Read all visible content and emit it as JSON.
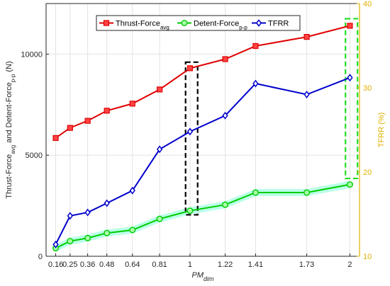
{
  "chart_data": {
    "type": "line",
    "x_tick_labels": [
      "0.16",
      "0.25",
      "0.36",
      "0.48",
      "0.64",
      "0.81",
      "1",
      "1.22",
      "1.41",
      "1.73",
      "2"
    ],
    "x_tick_positions": [
      0.16,
      0.25,
      0.36,
      0.48,
      0.64,
      0.81,
      1.0,
      1.22,
      1.41,
      1.73,
      2.0
    ],
    "xlim": [
      0.1,
      2.06
    ],
    "xlabel": {
      "main": "PM",
      "sub": "dim"
    },
    "ylabel_left": {
      "part1": "Thrust-Force",
      "sub1": "avg",
      "part2": " and Detent-Force",
      "sub2": "p-p",
      "part3": " (N)"
    },
    "ylabel_right": "TFRR (%)",
    "ylim_left": [
      0,
      12500
    ],
    "yticks_left": [
      0,
      5000,
      10000
    ],
    "ylim_right": [
      10,
      40
    ],
    "yticks_right": [
      10,
      20,
      30,
      40
    ],
    "grid": true,
    "legend_position": "top",
    "colors": {
      "thrust": "#e00000",
      "detent": "#00cc00",
      "tfrr": "#0000cc",
      "right_axis": "#e0b000",
      "black_box": "#000000",
      "green_box": "#22dd22",
      "band": "#66ffcc"
    },
    "series": [
      {
        "key": "thrust",
        "name": {
          "base": "Thrust-Force",
          "sub": "avg"
        },
        "axis": "left",
        "marker": "square",
        "x": [
          0.16,
          0.25,
          0.36,
          0.48,
          0.64,
          0.81,
          1.0,
          1.22,
          1.41,
          1.73,
          2.0
        ],
        "values": [
          5850,
          6350,
          6700,
          7200,
          7550,
          8250,
          9300,
          9750,
          10400,
          10850,
          11400
        ]
      },
      {
        "key": "detent",
        "name": {
          "base": "Detent-Force",
          "sub": "p-p"
        },
        "axis": "left",
        "marker": "circle",
        "x": [
          0.16,
          0.25,
          0.36,
          0.48,
          0.64,
          0.81,
          1.0,
          1.22,
          1.41,
          1.73,
          2.0
        ],
        "values": [
          400,
          750,
          900,
          1150,
          1300,
          1850,
          2250,
          2550,
          3150,
          3150,
          3550
        ]
      },
      {
        "key": "tfrr",
        "name": {
          "base": "TFRR",
          "sub": ""
        },
        "axis": "right",
        "marker": "diamond",
        "x": [
          0.16,
          0.25,
          0.36,
          0.48,
          0.64,
          0.81,
          1.0,
          1.22,
          1.41,
          1.73,
          2.0
        ],
        "values": [
          11.4,
          14.8,
          15.2,
          16.3,
          17.8,
          22.7,
          24.8,
          26.7,
          30.5,
          29.2,
          31.2
        ]
      }
    ],
    "annotations": [
      {
        "type": "dashed-box",
        "color_key": "black_box",
        "axis": "left",
        "x_range": [
          0.99,
          1.03
        ],
        "y_range": [
          2050,
          9600
        ]
      },
      {
        "type": "dashed-box",
        "color_key": "green_box",
        "axis": "left",
        "x_range": [
          1.99,
          2.03
        ],
        "y_range": [
          3850,
          11750
        ]
      }
    ]
  }
}
